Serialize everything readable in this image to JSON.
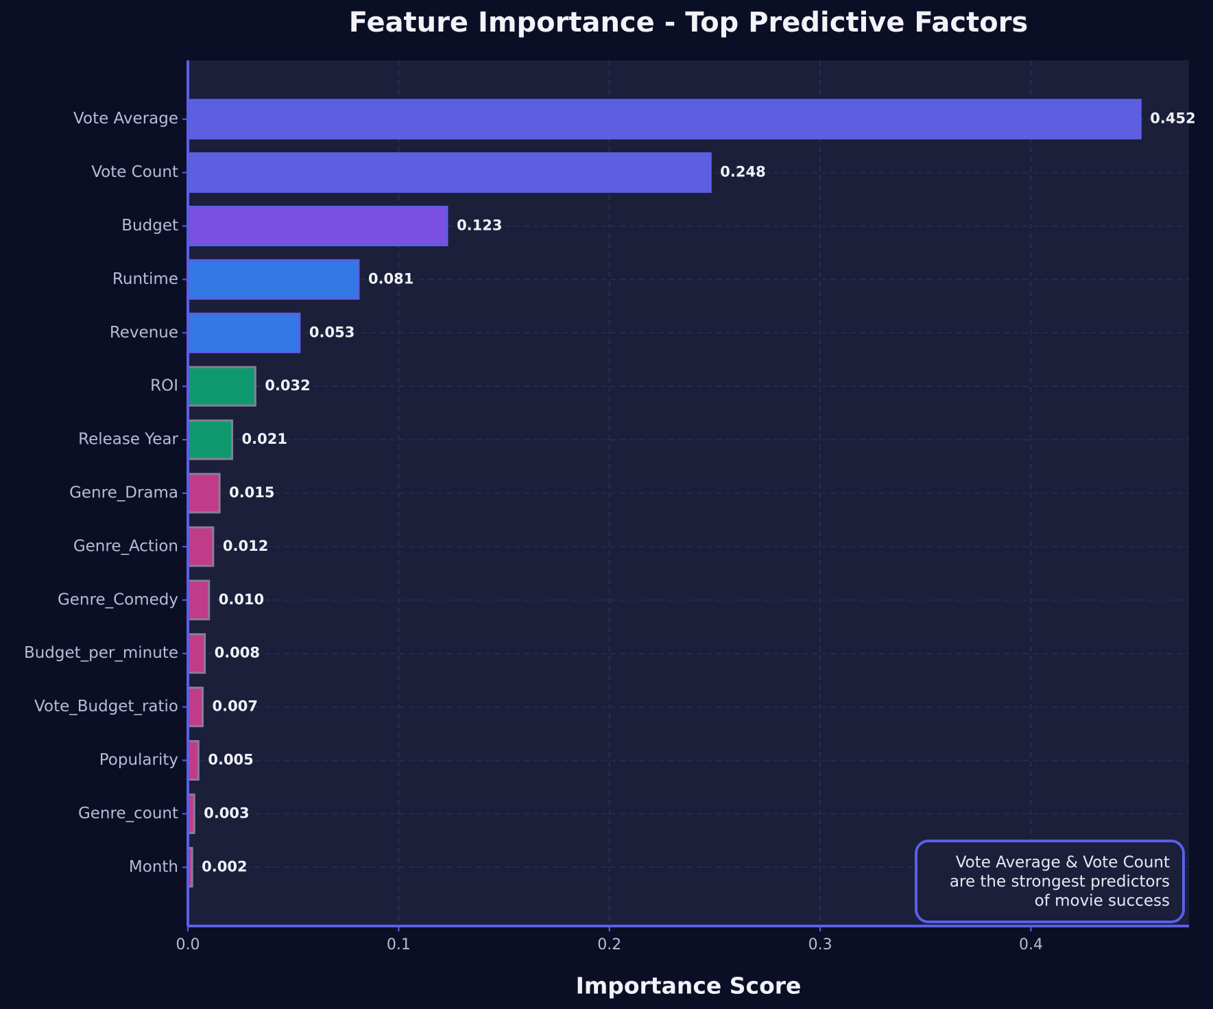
{
  "chart_data": {
    "type": "barh",
    "title": "Feature Importance - Top Predictive Factors",
    "xlabel": "Importance Score",
    "categories": [
      "Vote Average",
      "Vote Count",
      "Budget",
      "Runtime",
      "Revenue",
      "ROI",
      "Release Year",
      "Genre_Drama",
      "Genre_Action",
      "Genre_Comedy",
      "Budget_per_minute",
      "Vote_Budget_ratio",
      "Popularity",
      "Genre_count",
      "Month"
    ],
    "values": [
      0.452,
      0.248,
      0.123,
      0.081,
      0.053,
      0.032,
      0.021,
      0.015,
      0.012,
      0.01,
      0.008,
      0.007,
      0.005,
      0.003,
      0.002
    ],
    "value_labels": [
      "0.452",
      "0.248",
      "0.123",
      "0.081",
      "0.053",
      "0.032",
      "0.021",
      "0.015",
      "0.012",
      "0.010",
      "0.008",
      "0.007",
      "0.005",
      "0.003",
      "0.002"
    ],
    "colors": [
      "#5b5fe0",
      "#5b5fe0",
      "#7b4fe0",
      "#3478e6",
      "#3478e6",
      "#10996e",
      "#10996e",
      "#c03c88",
      "#c03c88",
      "#c03c88",
      "#c03c88",
      "#c03c88",
      "#c03c88",
      "#c03c88",
      "#c03c88"
    ],
    "xlim": [
      0,
      0.475
    ],
    "xticks": [
      {
        "value": 0,
        "label": "0.0"
      },
      0.1,
      0.2,
      0.3,
      0.4
    ],
    "grid": true,
    "annotation": [
      "Vote Average & Vote Count",
      "are the strongest predictors",
      "of movie success"
    ]
  }
}
